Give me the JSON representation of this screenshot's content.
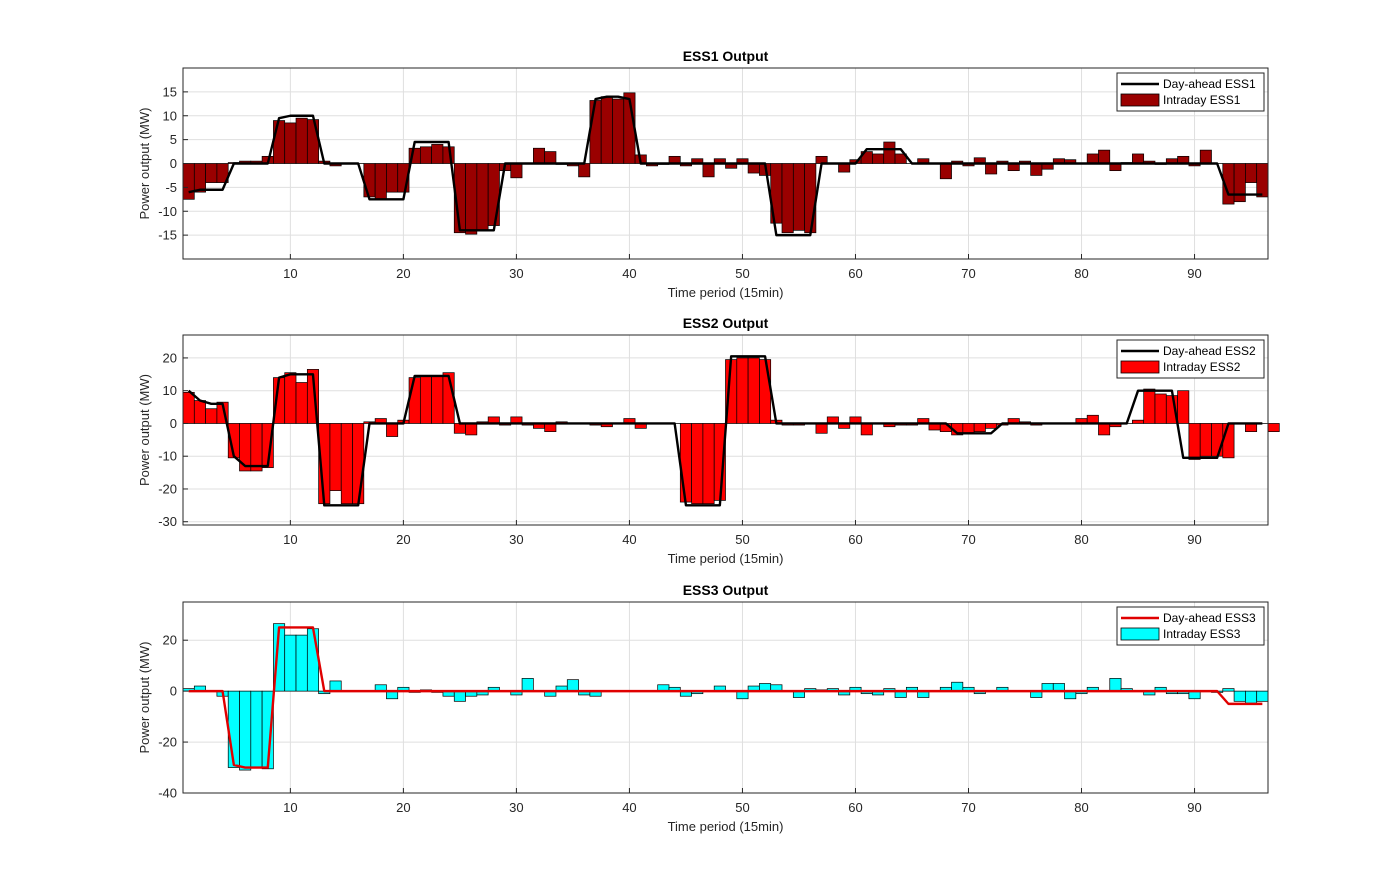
{
  "chart_data": [
    {
      "type": "bar",
      "title": "ESS1 Output",
      "xlabel": "Time period (15min)",
      "ylabel": "Power output (MW)",
      "xlim": [
        0.5,
        96.5
      ],
      "ylim": [
        -20,
        20
      ],
      "xticks": [
        10,
        20,
        30,
        40,
        50,
        60,
        70,
        80,
        90
      ],
      "yticks": [
        -15,
        -10,
        -5,
        0,
        5,
        10,
        15
      ],
      "grid": true,
      "legend_position": "top-right",
      "colors": {
        "bar": "#9a0000",
        "line": "#000000"
      },
      "series": [
        {
          "name": "Day-ahead ESS1",
          "kind": "line",
          "values": [
            -6,
            -5.5,
            -5.5,
            -5.5,
            0,
            0,
            0,
            0,
            9.5,
            10,
            10,
            10,
            0,
            0,
            0,
            0,
            -7.5,
            -7.5,
            -7.5,
            -7.5,
            4.5,
            4.5,
            4.5,
            4.5,
            -14,
            -14,
            -14,
            -14,
            0,
            0,
            0,
            0,
            0,
            0,
            0,
            0,
            13.5,
            14,
            14,
            13.5,
            0,
            0,
            0,
            0,
            0,
            0,
            0,
            0,
            0,
            0,
            0,
            0,
            -15,
            -15,
            -15,
            -15,
            0,
            0,
            0,
            0,
            3,
            3,
            3,
            3,
            0,
            0,
            0,
            0,
            0,
            0,
            0,
            0,
            0,
            0,
            0,
            0,
            0,
            0,
            0,
            0,
            0,
            0,
            0,
            0,
            0,
            0,
            0,
            0,
            0,
            0,
            0,
            0,
            -6.5,
            -6.5,
            -6.5,
            -6.5
          ]
        },
        {
          "name": "Intraday ESS1",
          "kind": "bar",
          "values": [
            -7.5,
            -6,
            -4,
            -4,
            0.2,
            0.5,
            0.5,
            1.5,
            9,
            8.5,
            9.5,
            9.2,
            0.5,
            -0.5,
            0,
            0,
            -7,
            -7.5,
            -6,
            -6,
            3.2,
            3.5,
            4,
            3.5,
            -14.5,
            -14.8,
            -14,
            -13,
            -1.5,
            -3,
            0,
            3.2,
            2.5,
            -0.2,
            -0.5,
            -2.8,
            13.2,
            14,
            13.5,
            14.8,
            1.8,
            -0.5,
            -0.2,
            1.5,
            -0.5,
            1,
            -2.8,
            1,
            -1,
            1,
            -2,
            -2.5,
            -12.5,
            -14.5,
            -14,
            -14.5,
            1.5,
            0,
            -1.8,
            0.8,
            2.5,
            2,
            4.5,
            2,
            0,
            1,
            0,
            -3.2,
            0.5,
            -0.5,
            1.2,
            -2.2,
            0.5,
            -1.5,
            0.5,
            -2.5,
            -1.2,
            1,
            0.8,
            0,
            2,
            2.8,
            -1.5,
            0.2,
            2,
            0.5,
            -0.2,
            1,
            1.5,
            -0.5,
            2.8,
            0,
            -8.5,
            -8,
            -4,
            -7
          ]
        }
      ]
    },
    {
      "type": "bar",
      "title": "ESS2 Output",
      "xlabel": "Time period (15min)",
      "ylabel": "Power output (MW)",
      "xlim": [
        0.5,
        96.5
      ],
      "ylim": [
        -31,
        27
      ],
      "xticks": [
        10,
        20,
        30,
        40,
        50,
        60,
        70,
        80,
        90
      ],
      "yticks": [
        -30,
        -20,
        -10,
        0,
        10,
        20
      ],
      "grid": true,
      "legend_position": "top-right",
      "colors": {
        "bar": "#ff0000",
        "line": "#000000"
      },
      "series": [
        {
          "name": "Day-ahead ESS2",
          "kind": "line",
          "values": [
            10,
            7,
            6,
            6,
            -10,
            -13,
            -13,
            -13,
            14,
            15,
            15,
            15,
            -25,
            -25,
            -25,
            -25,
            0,
            0,
            0,
            0,
            14.5,
            14.5,
            14.5,
            14.5,
            0,
            0,
            0,
            0,
            0,
            0,
            0,
            0,
            0,
            0,
            0,
            0,
            0,
            0,
            0,
            0,
            0,
            0,
            0,
            0,
            -25,
            -25,
            -25,
            -25,
            20.5,
            20.5,
            20.5,
            20.5,
            0,
            0,
            0,
            0,
            0,
            0,
            0,
            0,
            0,
            0,
            0,
            0,
            0,
            0,
            0,
            0,
            -3,
            -3,
            -3,
            -3,
            0,
            0,
            0,
            0,
            0,
            0,
            0,
            0,
            0,
            0,
            0,
            0,
            10,
            10,
            10,
            10,
            -10.5,
            -10.5,
            -10.5,
            -10.5,
            0,
            0,
            0,
            0
          ]
        },
        {
          "name": "Intraday ESS2",
          "kind": "bar",
          "values": [
            9.5,
            7,
            4.5,
            6.5,
            -10.5,
            -14.5,
            -14.5,
            -13.5,
            14,
            15.5,
            12.5,
            16.5,
            -24.5,
            -20.5,
            -24.5,
            -24.5,
            0.5,
            1.5,
            -4,
            1,
            14,
            14.5,
            14.5,
            15.5,
            -3,
            -3.5,
            0.5,
            2,
            -0.5,
            2,
            -0.5,
            -1.5,
            -2.5,
            0.5,
            0,
            0,
            -0.5,
            -1,
            0,
            1.5,
            -1.5,
            0,
            0,
            0,
            -24,
            -24.5,
            -24.5,
            -23.5,
            19.5,
            20,
            20,
            19.5,
            1,
            -0.5,
            -0.5,
            0,
            -3,
            2,
            -1.5,
            2,
            -3.5,
            0,
            -1,
            -0.5,
            -0.5,
            1.5,
            -2,
            -2.5,
            -3.5,
            -3,
            -2.5,
            -1.5,
            -0.5,
            1.5,
            0.5,
            -0.5,
            0,
            0,
            0,
            1.5,
            2.5,
            -3.5,
            -1,
            0,
            1,
            10.5,
            9,
            8.5,
            10,
            -11,
            -10,
            -10,
            -10.5,
            0,
            -2.5,
            0,
            -2.5
          ]
        }
      ]
    },
    {
      "type": "bar",
      "title": "ESS3 Output",
      "xlabel": "Time period (15min)",
      "ylabel": "Power output (MW)",
      "xlim": [
        0.5,
        96.5
      ],
      "ylim": [
        -40,
        35
      ],
      "xticks": [
        10,
        20,
        30,
        40,
        50,
        60,
        70,
        80,
        90
      ],
      "yticks": [
        -40,
        -20,
        0,
        20
      ],
      "grid": true,
      "legend_position": "top-right",
      "colors": {
        "bar": "#00ffff",
        "line": "#e00000"
      },
      "series": [
        {
          "name": "Day-ahead ESS3",
          "kind": "line",
          "values": [
            0,
            0,
            0,
            0,
            -29,
            -30,
            -30,
            -30,
            25,
            25,
            25,
            25,
            0,
            0,
            0,
            0,
            0,
            0,
            0,
            0,
            0,
            0,
            0,
            0,
            0,
            0,
            0,
            0,
            0,
            0,
            0,
            0,
            0,
            0,
            0,
            0,
            0,
            0,
            0,
            0,
            0,
            0,
            0,
            0,
            0,
            0,
            0,
            0,
            0,
            0,
            0,
            0,
            0,
            0,
            0,
            0,
            0,
            0,
            0,
            0,
            0,
            0,
            0,
            0,
            0,
            0,
            0,
            0,
            0,
            0,
            0,
            0,
            0,
            0,
            0,
            0,
            0,
            0,
            0,
            0,
            0,
            0,
            0,
            0,
            0,
            0,
            0,
            0,
            0,
            0,
            0,
            0,
            -5,
            -5,
            -5,
            -5
          ]
        },
        {
          "name": "Intraday ESS3",
          "kind": "bar",
          "values": [
            1,
            2,
            0,
            -2,
            -30,
            -31,
            -30,
            -30.5,
            26.5,
            22,
            22,
            24.5,
            -1,
            4,
            0,
            0,
            0,
            2.5,
            -3,
            1.5,
            -0.5,
            0.5,
            -0.5,
            -2,
            -4,
            -2,
            -1.5,
            1.5,
            0,
            -1.5,
            5,
            0,
            -2,
            2,
            4.5,
            -1.5,
            -2,
            0,
            0,
            0,
            0,
            0,
            2.5,
            1.5,
            -2,
            -1,
            0,
            2,
            0,
            -3,
            2,
            3,
            2.5,
            0,
            -2.5,
            1,
            0.5,
            1,
            -1.5,
            1.5,
            -1,
            -1.5,
            1,
            -2.5,
            1.5,
            -2.5,
            0,
            1.5,
            3.5,
            1.5,
            -1,
            0,
            1.5,
            0,
            0,
            -2.5,
            3,
            3,
            -3,
            -1,
            1.5,
            0,
            5,
            1,
            0,
            -1.5,
            1.5,
            -1,
            -1,
            -3,
            0,
            -0.5,
            1,
            -4,
            -5,
            -4
          ]
        }
      ]
    }
  ]
}
